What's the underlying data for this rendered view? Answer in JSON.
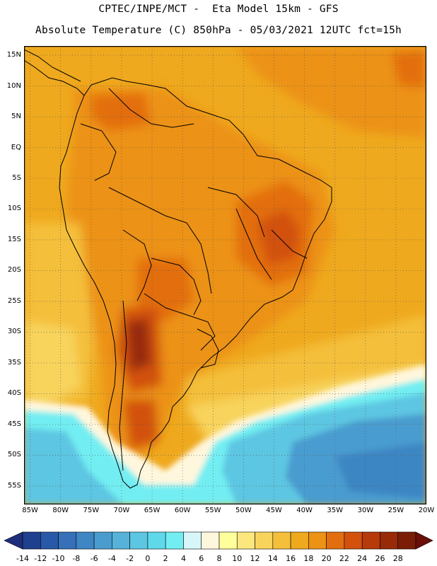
{
  "header": {
    "line1": "CPTEC/INPE/MCT -  Eta Model 15km - GFS",
    "line2": "Absolute Temperature (C) 850hPa - 05/03/2021 12UTC fct=15h"
  },
  "map": {
    "lat_labels": [
      "15N",
      "10N",
      "5N",
      "EQ",
      "5S",
      "10S",
      "15S",
      "20S",
      "25S",
      "30S",
      "35S",
      "40S",
      "45S",
      "50S",
      "55S"
    ],
    "lat_values": [
      15,
      10,
      5,
      0,
      -5,
      -10,
      -15,
      -20,
      -25,
      -30,
      -35,
      -40,
      -45,
      -50,
      -55
    ],
    "lon_labels": [
      "85W",
      "80W",
      "75W",
      "70W",
      "65W",
      "60W",
      "55W",
      "50W",
      "45W",
      "40W",
      "35W",
      "30W",
      "25W",
      "20W"
    ],
    "lon_values": [
      -85,
      -80,
      -75,
      -70,
      -65,
      -60,
      -55,
      -50,
      -45,
      -40,
      -35,
      -30,
      -25,
      -20
    ],
    "lat_range": [
      -58,
      16.5
    ],
    "lon_range": [
      -86,
      -20
    ],
    "grid": "dotted"
  },
  "colorbar": {
    "labels": [
      "-14",
      "-12",
      "-10",
      "-8",
      "-6",
      "-4",
      "-2",
      "0",
      "2",
      "4",
      "6",
      "8",
      "10",
      "12",
      "14",
      "16",
      "18",
      "20",
      "22",
      "24",
      "26",
      "28"
    ],
    "colors": [
      "#1f3f8f",
      "#2a58a8",
      "#3570b8",
      "#3e86c4",
      "#4a9ccf",
      "#56b2d9",
      "#5dc6e2",
      "#5fd8ea",
      "#72eef2",
      "#d7f6fa",
      "#fff7dd",
      "#ffff9c",
      "#fbe77d",
      "#f8d45d",
      "#f4bf3a",
      "#efa91e",
      "#ec9214",
      "#e36e10",
      "#d2510d",
      "#b63a0a",
      "#982a08",
      "#7b1d06"
    ],
    "left_arrow": "#1f2e7a",
    "right_arrow": "#6a0f0a"
  },
  "legend_meaning": {
    "cold_south_atlantic": "Temperature (C) shading",
    "unit": "C"
  }
}
